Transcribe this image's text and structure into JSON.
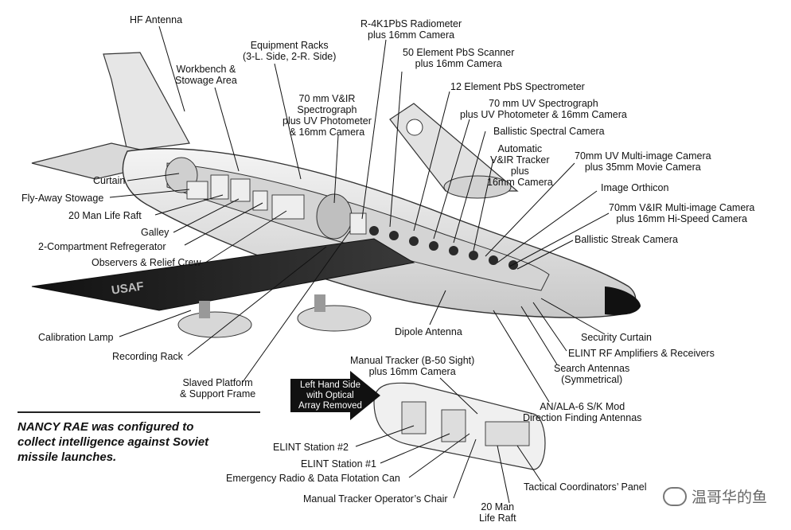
{
  "labels": {
    "hf_antenna": "HF Antenna",
    "workbench": "Workbench &\nStowage Area",
    "equipment_racks": "Equipment Racks\n(3-L. Side, 2-R. Side)",
    "radiometer": "R-4K1PbS Radiometer\nplus 16mm Camera",
    "pbs_scanner": "50 Element PbS Scanner\nplus 16mm Camera",
    "pbs_spectrometer": "12 Element PbS Spectrometer",
    "vir_spectrograph": "70 mm V&IR\nSpectrograph\nplus UV Photometer\n& 16mm Camera",
    "uv_spectrograph": "70 mm UV Spectrograph\nplus UV Photometer & 16mm Camera",
    "ballistic_spectral": "Ballistic Spectral Camera",
    "auto_tracker": "Automatic\nV&IR Tracker\nplus\n16mm Camera",
    "uv_multi": "70mm UV Multi-image Camera\nplus 35mm Movie Camera",
    "image_orthicon": "Image Orthicon",
    "vir_multi": "70mm V&IR Multi-image Camera\nplus 16mm Hi-Speed Camera",
    "ballistic_streak": "Ballistic Streak Camera",
    "curtain": "Curtain",
    "fly_away": "Fly-Away Stowage",
    "life_raft_20": "20 Man Life Raft",
    "galley": "Galley",
    "refregerator": "2-Compartment Refregerator",
    "observers": "Observers & Relief Crew",
    "calibration_lamp": "Calibration Lamp",
    "recording_rack": "Recording Rack",
    "slaved_platform": "Slaved Platform\n& Support Frame",
    "dipole_antenna": "Dipole Antenna",
    "security_curtain": "Security Curtain",
    "elint_rf": "ELINT RF Amplifiers & Receivers",
    "search_antennas": "Search Antennas\n(Symmetrical)",
    "an_ala": "AN/ALA-6 S/K Mod\nDirection Finding Antennas",
    "manual_tracker": "Manual Tracker (B-50 Sight)\nplus 16mm Camera",
    "elint_2": "ELINT Station #2",
    "elint_1": "ELINT Station #1",
    "emergency_radio": "Emergency Radio & Data Flotation Can",
    "operators_chair": "Manual Tracker Operator’s Chair",
    "tactical_panel": "Tactical Coordinators’ Panel",
    "life_raft_20_lower": "20 Man\nLife Raft",
    "wing_marking": "USAF"
  },
  "arrow_box": "Left Hand Side\nwith Optical\nArray Removed",
  "caption": "NANCY RAE was configured to\ncollect intelligence against Soviet\nmissile launches.",
  "watermark": "温哥华的鱼",
  "colors": {
    "ink": "#111111",
    "hull": "#e9e9e9",
    "hull_shade": "#bdbdbd",
    "dark": "#1a1a1a",
    "background": "#ffffff"
  }
}
